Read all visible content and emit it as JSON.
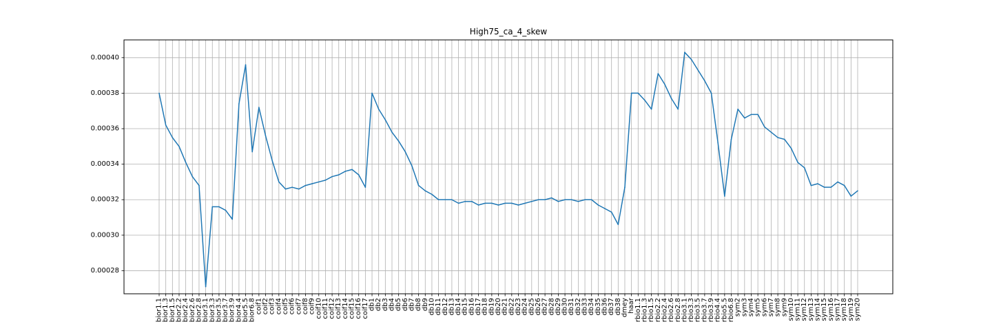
{
  "chart_data": {
    "type": "line",
    "title": "High75_ca_4_skew",
    "xlabel": "",
    "ylabel": "",
    "categories": [
      "bior1.1",
      "bior1.3",
      "bior1.5",
      "bior2.2",
      "bior2.4",
      "bior2.6",
      "bior2.8",
      "bior3.1",
      "bior3.3",
      "bior3.5",
      "bior3.7",
      "bior3.9",
      "bior4.4",
      "bior5.5",
      "bior6.8",
      "coif1",
      "coif2",
      "coif3",
      "coif4",
      "coif5",
      "coif6",
      "coif7",
      "coif8",
      "coif9",
      "coif10",
      "coif11",
      "coif12",
      "coif13",
      "coif14",
      "coif15",
      "coif16",
      "coif17",
      "db1",
      "db2",
      "db3",
      "db4",
      "db5",
      "db6",
      "db7",
      "db8",
      "db9",
      "db10",
      "db11",
      "db12",
      "db13",
      "db14",
      "db15",
      "db16",
      "db17",
      "db18",
      "db19",
      "db20",
      "db21",
      "db22",
      "db23",
      "db24",
      "db25",
      "db26",
      "db27",
      "db28",
      "db29",
      "db30",
      "db31",
      "db32",
      "db33",
      "db34",
      "db35",
      "db36",
      "db37",
      "db38",
      "dmey",
      "haar",
      "rbio1.1",
      "rbio1.3",
      "rbio1.5",
      "rbio2.2",
      "rbio2.4",
      "rbio2.6",
      "rbio2.8",
      "rbio3.1",
      "rbio3.3",
      "rbio3.5",
      "rbio3.7",
      "rbio3.9",
      "rbio4.4",
      "rbio5.5",
      "rbio6.8",
      "sym2",
      "sym3",
      "sym4",
      "sym5",
      "sym6",
      "sym7",
      "sym8",
      "sym9",
      "sym10",
      "sym11",
      "sym12",
      "sym13",
      "sym14",
      "sym15",
      "sym16",
      "sym17",
      "sym18",
      "sym19",
      "sym20"
    ],
    "series": [
      {
        "name": "",
        "color": "#1f77b4",
        "values": [
          0.00038,
          0.000362,
          0.000355,
          0.00035,
          0.000341,
          0.000333,
          0.000328,
          0.000271,
          0.000316,
          0.000316,
          0.000314,
          0.000309,
          0.000374,
          0.000396,
          0.000347,
          0.000372,
          0.000356,
          0.000342,
          0.00033,
          0.000326,
          0.000327,
          0.000326,
          0.000328,
          0.000329,
          0.00033,
          0.000331,
          0.000333,
          0.000334,
          0.000336,
          0.000337,
          0.000334,
          0.000327,
          0.00038,
          0.000371,
          0.000365,
          0.000358,
          0.000353,
          0.000347,
          0.000339,
          0.000328,
          0.000325,
          0.000323,
          0.00032,
          0.00032,
          0.00032,
          0.000318,
          0.000319,
          0.000319,
          0.000317,
          0.000318,
          0.000318,
          0.000317,
          0.000318,
          0.000318,
          0.000317,
          0.000318,
          0.000319,
          0.00032,
          0.00032,
          0.000321,
          0.000319,
          0.00032,
          0.00032,
          0.000319,
          0.00032,
          0.00032,
          0.000317,
          0.000315,
          0.000313,
          0.000306,
          0.000327,
          0.00038,
          0.00038,
          0.000376,
          0.000371,
          0.000391,
          0.000385,
          0.000377,
          0.000371,
          0.000403,
          0.000399,
          0.000393,
          0.000387,
          0.00038,
          0.000352,
          0.000322,
          0.000354,
          0.000371,
          0.000366,
          0.000368,
          0.000368,
          0.000361,
          0.000358,
          0.000355,
          0.000354,
          0.000349,
          0.000341,
          0.000338,
          0.000328,
          0.000329,
          0.000327,
          0.000327,
          0.00033,
          0.000328,
          0.000322,
          0.000325
        ]
      }
    ],
    "ylim": [
      0.000267,
      0.00041
    ],
    "yticks": [
      0.00028,
      0.0003,
      0.00032,
      0.00034,
      0.00036,
      0.00038,
      0.0004
    ],
    "ytick_labels": [
      "0.00028",
      "0.00030",
      "0.00032",
      "0.00034",
      "0.00036",
      "0.00038",
      "0.00040"
    ],
    "grid": true
  }
}
